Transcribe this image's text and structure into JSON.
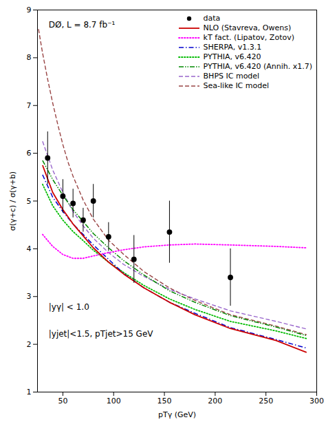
{
  "chart_data": {
    "type": "line",
    "x_label": "pTγ (GeV)",
    "y_label": "σ(γ+c) / σ(γ+b)",
    "xlim": [
      25,
      300
    ],
    "ylim": [
      1,
      9
    ],
    "xticks": [
      50,
      100,
      150,
      200,
      250,
      300
    ],
    "yticks": [
      1,
      2,
      3,
      4,
      5,
      6,
      7,
      8,
      9
    ],
    "grid": false,
    "legend": "upper right",
    "annotations": [
      "DØ, L = 8.7 fb⁻¹",
      "|yγ| < 1.0",
      "|yjet|<1.5, pTjet>15 GeV"
    ],
    "series": [
      {
        "name": "data",
        "type": "scatter",
        "color": "black",
        "marker": "o",
        "x": [
          35,
          50,
          60,
          70,
          80,
          95,
          120,
          155,
          215
        ],
        "values": [
          5.9,
          5.1,
          4.95,
          4.6,
          5.0,
          4.25,
          3.78,
          4.35,
          3.4
        ],
        "yerr_lo": [
          0.55,
          0.35,
          0.3,
          0.25,
          0.35,
          0.3,
          0.5,
          0.65,
          0.6
        ],
        "yerr_hi": [
          0.55,
          0.35,
          0.3,
          0.25,
          0.35,
          0.3,
          0.5,
          0.65,
          0.6
        ]
      },
      {
        "name": "NLO (Stavreva, Owens)",
        "color": "#cc0000",
        "line_style": "solid",
        "x": [
          30,
          40,
          50,
          60,
          70,
          80,
          95,
          110,
          130,
          155,
          180,
          215,
          260,
          290
        ],
        "values": [
          5.75,
          5.18,
          4.82,
          4.52,
          4.27,
          4.02,
          3.72,
          3.47,
          3.18,
          2.88,
          2.62,
          2.33,
          2.08,
          1.83
        ]
      },
      {
        "name": "kT fact. (Lipatov, Zotov)",
        "color": "#ff00ff",
        "line_style": "dotted",
        "x": [
          30,
          40,
          50,
          60,
          70,
          80,
          95,
          110,
          130,
          155,
          180,
          215,
          260,
          290
        ],
        "values": [
          4.3,
          4.05,
          3.88,
          3.8,
          3.8,
          3.85,
          3.92,
          3.98,
          4.04,
          4.08,
          4.1,
          4.08,
          4.05,
          4.02
        ]
      },
      {
        "name": "SHERPA, v1.3.1",
        "color": "#0000cc",
        "line_style": "dashdot",
        "x": [
          30,
          40,
          50,
          60,
          70,
          80,
          95,
          110,
          130,
          155,
          180,
          215,
          260,
          290
        ],
        "values": [
          5.55,
          5.08,
          4.78,
          4.52,
          4.3,
          4.08,
          3.78,
          3.48,
          3.18,
          2.88,
          2.65,
          2.35,
          2.1,
          1.92
        ]
      },
      {
        "name": "PYTHIA, v6.420",
        "color": "#00bb00",
        "line_style": "dotted",
        "x": [
          30,
          40,
          50,
          60,
          70,
          80,
          95,
          110,
          130,
          155,
          180,
          215,
          260,
          290
        ],
        "values": [
          5.35,
          4.9,
          4.6,
          4.36,
          4.17,
          3.97,
          3.72,
          3.5,
          3.23,
          2.95,
          2.73,
          2.48,
          2.28,
          2.12
        ]
      },
      {
        "name": "PYTHIA, v6.420 (Annih. x1.7)",
        "color": "#008800",
        "line_style": "dashdotdot",
        "x": [
          30,
          40,
          50,
          60,
          70,
          80,
          95,
          110,
          130,
          155,
          180,
          215,
          260,
          290
        ],
        "values": [
          5.85,
          5.45,
          5.12,
          4.82,
          4.57,
          4.32,
          4.02,
          3.75,
          3.45,
          3.12,
          2.88,
          2.6,
          2.36,
          2.18
        ]
      },
      {
        "name": "BHPS IC model",
        "color": "#9966cc",
        "line_style": "dashed",
        "x": [
          30,
          40,
          50,
          60,
          70,
          80,
          95,
          110,
          130,
          155,
          180,
          215,
          260,
          290
        ],
        "values": [
          6.25,
          5.65,
          5.18,
          4.78,
          4.48,
          4.22,
          3.92,
          3.67,
          3.42,
          3.15,
          2.95,
          2.7,
          2.48,
          2.32
        ]
      },
      {
        "name": "Sea-like IC model",
        "color": "#994444",
        "line_style": "dashed",
        "x": [
          26,
          30,
          35,
          40,
          45,
          50,
          55,
          60,
          70,
          80,
          95,
          110,
          130,
          155,
          180,
          215,
          260,
          290
        ],
        "values": [
          8.6,
          8.1,
          7.55,
          7.05,
          6.6,
          6.18,
          5.82,
          5.52,
          5.02,
          4.62,
          4.18,
          3.88,
          3.52,
          3.18,
          2.92,
          2.62,
          2.38,
          2.2
        ]
      }
    ]
  }
}
